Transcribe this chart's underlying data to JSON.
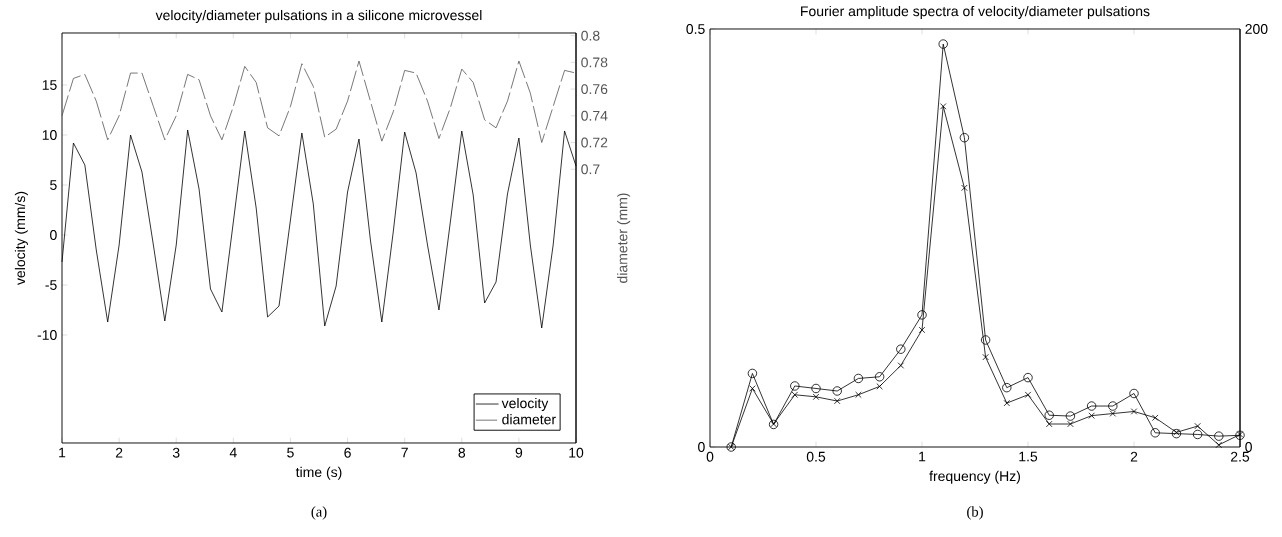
{
  "chart_data": [
    {
      "type": "line",
      "title": "velocity/diameter pulsations in a silicone microvessel",
      "xlabel": "time (s)",
      "ylabel": "velocity (mm/s)",
      "y2label": "diameter (mm)",
      "x": [
        1.0,
        1.2,
        1.4,
        1.6,
        1.8,
        2.0,
        2.2,
        2.4,
        2.6,
        2.8,
        3.0,
        3.2,
        3.4,
        3.6,
        3.8,
        4.0,
        4.2,
        4.4,
        4.6,
        4.8,
        5.0,
        5.2,
        5.4,
        5.6,
        5.8,
        6.0,
        6.2,
        6.4,
        6.6,
        6.8,
        7.0,
        7.2,
        7.4,
        7.6,
        7.8,
        8.0,
        8.2,
        8.4,
        8.6,
        8.8,
        9.0,
        9.2,
        9.4,
        9.6,
        9.8,
        10.0
      ],
      "series": [
        {
          "name": "velocity",
          "color": "#000000",
          "line_style": "solid",
          "values": [
            -2.7,
            9.2,
            7.0,
            -1.5,
            -8.7,
            -1.0,
            10.0,
            6.3,
            -1.0,
            -8.6,
            -1.0,
            10.5,
            4.6,
            -5.4,
            -7.7,
            1.3,
            10.4,
            2.7,
            -8.2,
            -7.1,
            1.5,
            10.2,
            3.1,
            -9.1,
            -5.1,
            4.3,
            9.6,
            -0.5,
            -8.7,
            0.3,
            10.3,
            6.2,
            -1.0,
            -7.5,
            1.3,
            10.4,
            4.0,
            -6.8,
            -4.7,
            4.1,
            9.7,
            -1.0,
            -9.3,
            -1.0,
            10.4,
            6.9
          ]
        },
        {
          "name": "diameter",
          "color": "#555555",
          "line_style": "dashed",
          "axis": "y2",
          "values": [
            0.74,
            0.768,
            0.771,
            0.751,
            0.722,
            0.74,
            0.772,
            0.772,
            0.747,
            0.722,
            0.74,
            0.771,
            0.767,
            0.74,
            0.722,
            0.747,
            0.777,
            0.765,
            0.731,
            0.725,
            0.747,
            0.779,
            0.762,
            0.724,
            0.73,
            0.751,
            0.781,
            0.751,
            0.721,
            0.743,
            0.774,
            0.772,
            0.751,
            0.723,
            0.746,
            0.775,
            0.765,
            0.737,
            0.731,
            0.751,
            0.781,
            0.757,
            0.72,
            0.747,
            0.774,
            0.772
          ]
        }
      ],
      "xlim": [
        1,
        10
      ],
      "xticks": [
        1,
        2,
        3,
        4,
        5,
        6,
        7,
        8,
        9,
        10
      ],
      "ylim": [
        -20.8,
        20.2
      ],
      "yticks": [
        -10,
        -5,
        0,
        5,
        10,
        15
      ],
      "y2lim": [
        0.495,
        0.802
      ],
      "y2ticks": [
        0.7,
        0.72,
        0.74,
        0.76,
        0.78,
        0.8
      ],
      "legend": "bottom right",
      "annotations": [
        "(a)"
      ]
    },
    {
      "type": "line",
      "title": "Fourier amplitude spectra of velocity/diameter pulsations",
      "xlabel": "frequency (Hz)",
      "x": [
        0.1,
        0.2,
        0.3,
        0.4,
        0.5,
        0.6,
        0.7,
        0.8,
        0.9,
        1.0,
        1.1,
        1.2,
        1.3,
        1.4,
        1.5,
        1.6,
        1.7,
        1.8,
        1.9,
        2.0,
        2.1,
        2.2,
        2.3,
        2.4,
        2.5
      ],
      "series": [
        {
          "color": "#000000",
          "marker": "circle",
          "values": [
            0.0,
            0.088,
            0.027,
            0.073,
            0.07,
            0.067,
            0.082,
            0.084,
            0.117,
            0.158,
            0.482,
            0.37,
            0.128,
            0.071,
            0.083,
            0.038,
            0.037,
            0.049,
            0.049,
            0.064,
            0.017,
            0.016,
            0.015,
            0.013,
            0.014
          ]
        },
        {
          "color": "#000000",
          "marker": "cross",
          "axis": "y2",
          "values": [
            0,
            28,
            11,
            25,
            24,
            22,
            25,
            29,
            39,
            56,
            163,
            124,
            43,
            21,
            25,
            11,
            11,
            15,
            16,
            17,
            14,
            7,
            10,
            1,
            6
          ]
        }
      ],
      "xlim": [
        0,
        2.5
      ],
      "xticks": [
        0,
        0.5,
        1,
        1.5,
        2,
        2.5
      ],
      "ylim": [
        0,
        0.5
      ],
      "yticks": [
        0,
        0.5
      ],
      "y2lim": [
        0,
        200
      ],
      "y2ticks": [
        0,
        200
      ],
      "annotations": [
        "(b)"
      ]
    }
  ]
}
